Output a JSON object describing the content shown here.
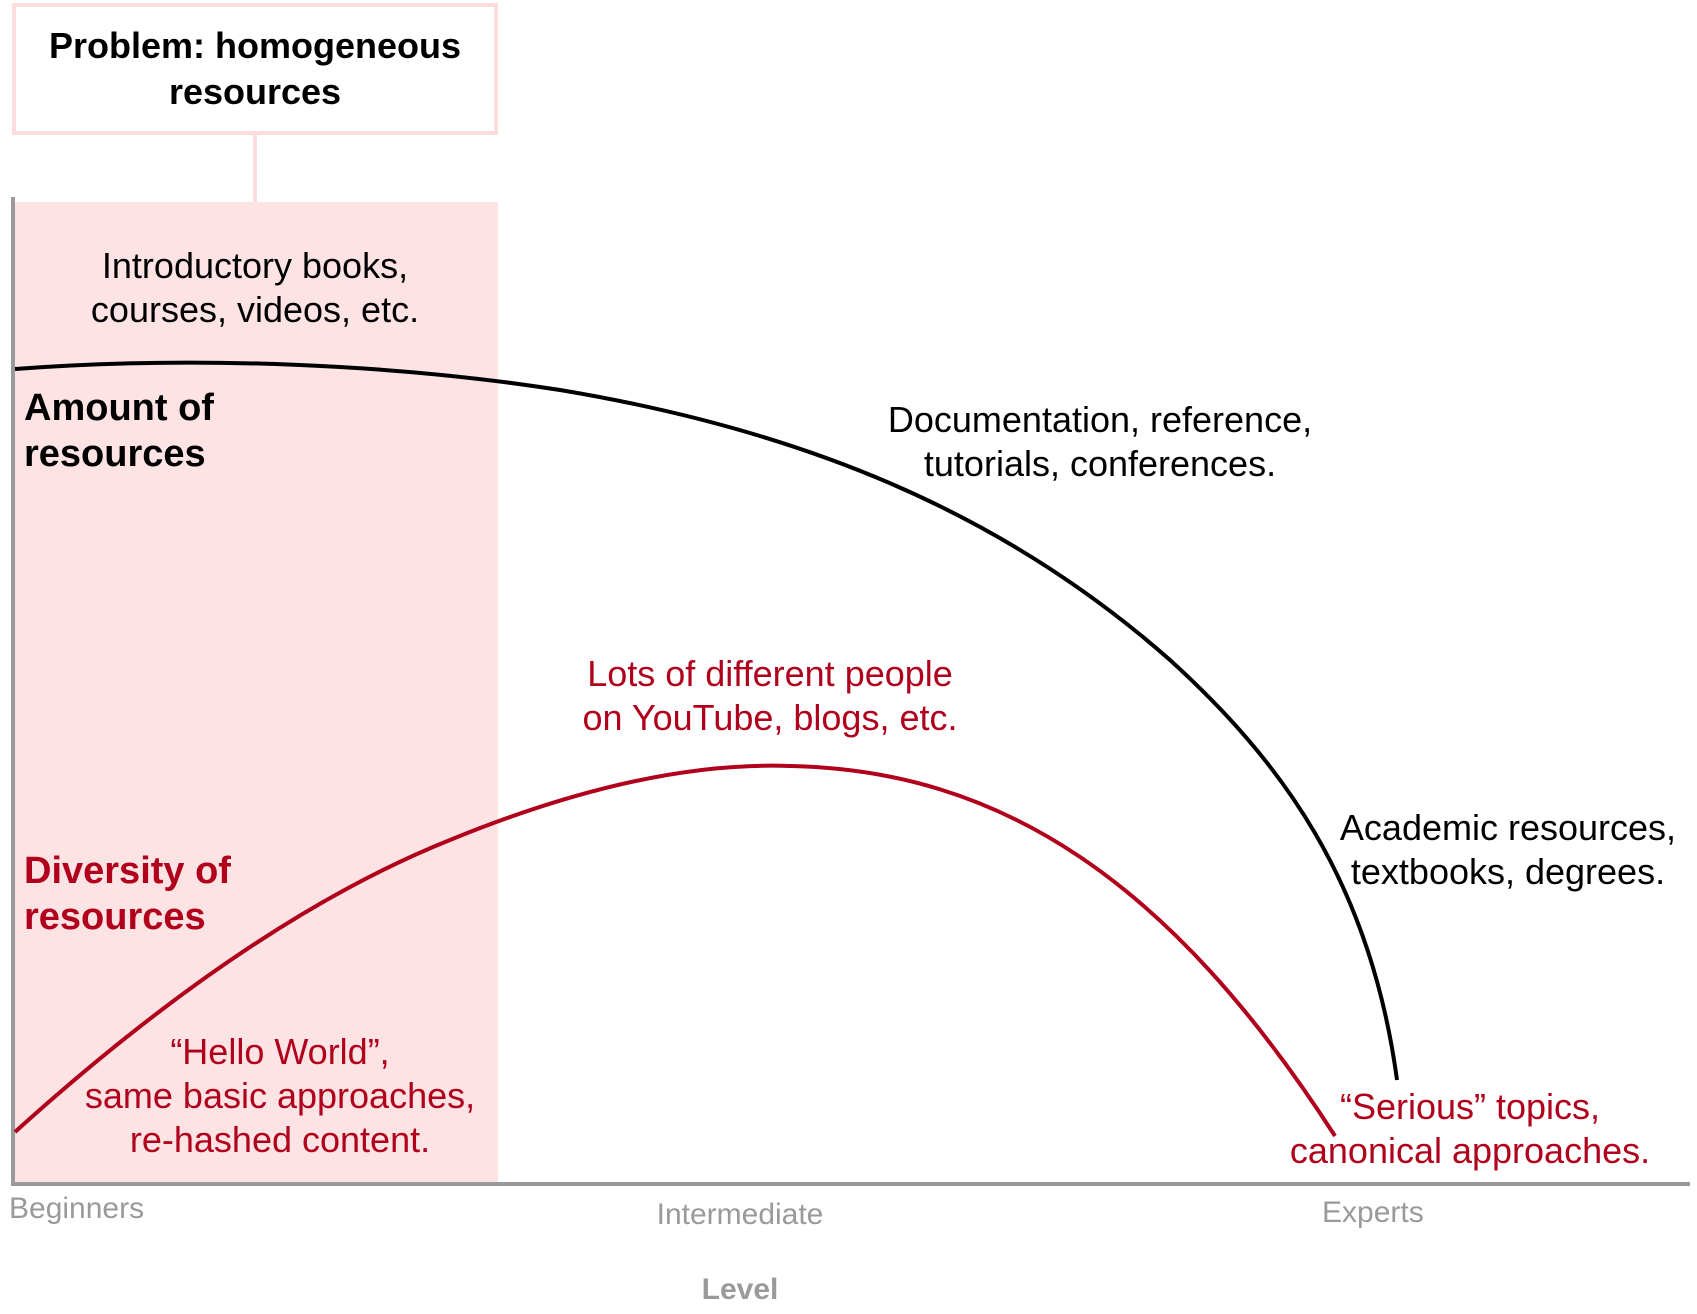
{
  "problem_box": {
    "title": "Problem: homogeneous resources"
  },
  "series": {
    "amount": {
      "label": "Amount of resources",
      "color": "#000000"
    },
    "diversity": {
      "label": "Diversity of resources",
      "color": "#b0001c"
    }
  },
  "highlight_color": "#fde3e3",
  "annotations": {
    "intro_line1": "Introductory books,",
    "intro_line2": "courses, videos, etc.",
    "docs_line1": "Documentation, reference,",
    "docs_line2": "tutorials, conferences.",
    "academic_line1": "Academic resources,",
    "academic_line2": "textbooks, degrees.",
    "lots_line1": "Lots of different people",
    "lots_line2": "on YouTube, blogs, etc.",
    "hello_line1": "“Hello World”,",
    "hello_line2": "same basic approaches,",
    "hello_line3": "re-hashed content.",
    "serious_line1": "“Serious” topics,",
    "serious_line2": "canonical approaches."
  },
  "axis": {
    "x_label": "Level",
    "ticks": [
      "Beginners",
      "Intermediate",
      "Experts"
    ]
  }
}
